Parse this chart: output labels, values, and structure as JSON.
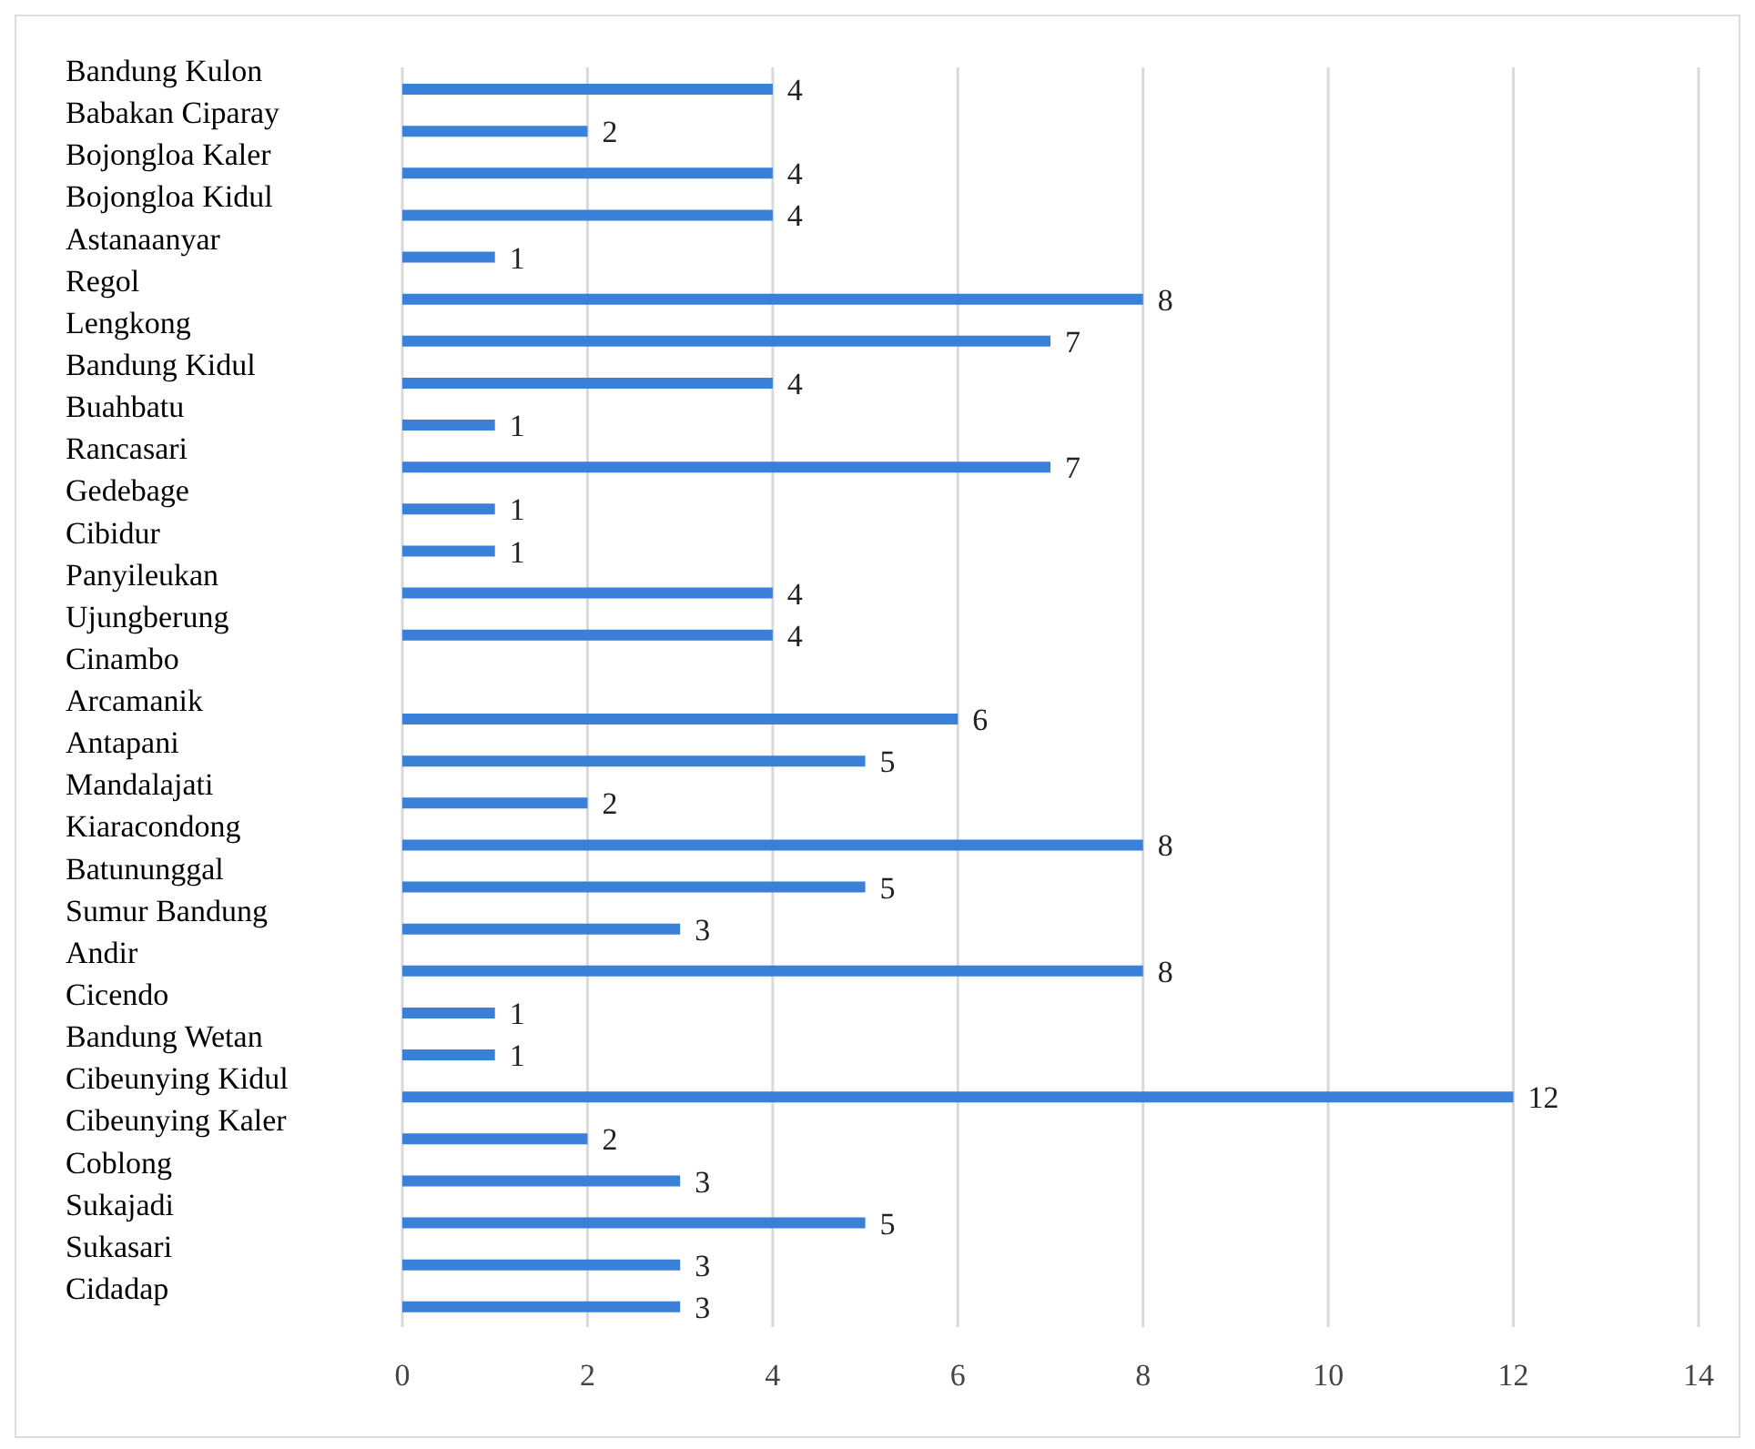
{
  "chart_data": {
    "type": "bar",
    "orientation": "horizontal",
    "categories": [
      "Bandung Kulon",
      "Babakan Ciparay",
      "Bojongloa Kaler",
      "Bojongloa Kidul",
      "Astanaanyar",
      "Regol",
      "Lengkong",
      "Bandung Kidul",
      "Buahbatu",
      "Rancasari",
      "Gedebage",
      "Cibidur",
      "Panyileukan",
      "Ujungberung",
      "Cinambo",
      "Arcamanik",
      "Antapani",
      "Mandalajati",
      "Kiaracondong",
      "Batununggal",
      "Sumur Bandung",
      "Andir",
      "Cicendo",
      "Bandung Wetan",
      "Cibeunying Kidul",
      "Cibeunying Kaler",
      "Coblong",
      "Sukajadi",
      "Sukasari",
      "Cidadap"
    ],
    "values": [
      4,
      2,
      4,
      4,
      1,
      8,
      7,
      4,
      1,
      7,
      1,
      1,
      4,
      4,
      null,
      6,
      5,
      2,
      8,
      5,
      3,
      8,
      1,
      1,
      12,
      2,
      3,
      5,
      3,
      3
    ],
    "color": "#3a7fd8",
    "xlim": [
      0,
      14
    ],
    "xticks": [
      0,
      2,
      4,
      6,
      8,
      10,
      12,
      14
    ],
    "grid": "x",
    "data_labels": true
  }
}
